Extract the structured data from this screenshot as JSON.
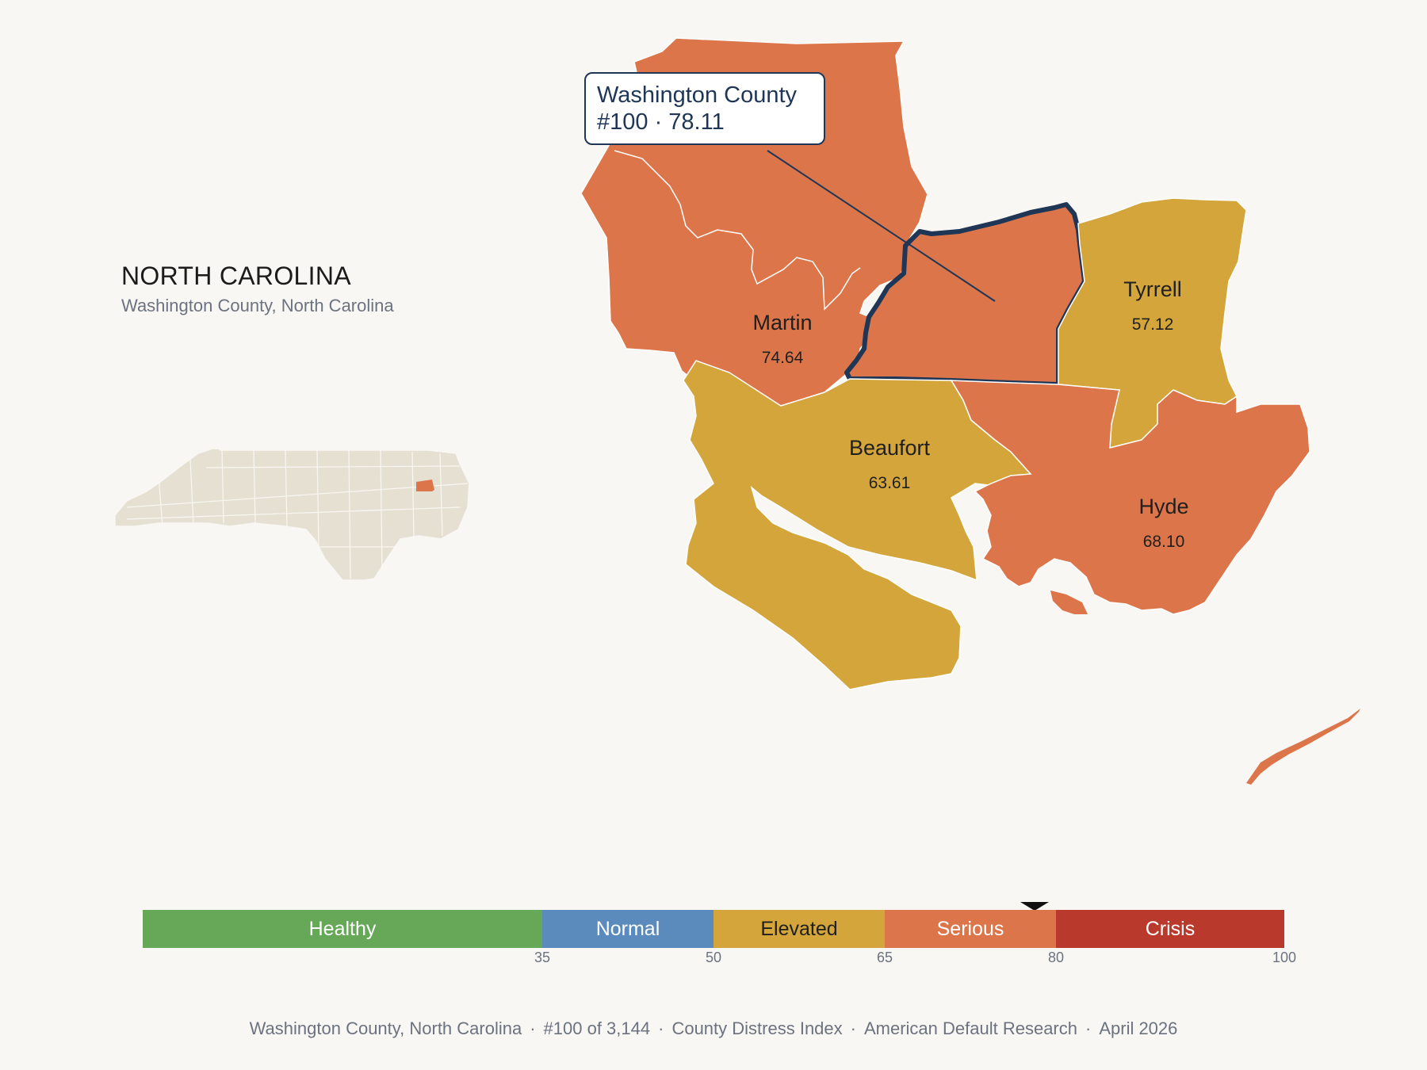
{
  "header": {
    "state_title": "NORTH CAROLINA",
    "subtitle": "Washington County, North Carolina"
  },
  "tooltip": {
    "line1": "Washington County",
    "line2": "#100 · 78.11"
  },
  "counties": [
    {
      "name": "Martin",
      "score": "74.64",
      "category": "Serious"
    },
    {
      "name": "Tyrrell",
      "score": "57.12",
      "category": "Elevated"
    },
    {
      "name": "Beaufort",
      "score": "63.61",
      "category": "Elevated"
    },
    {
      "name": "Hyde",
      "score": "68.10",
      "category": "Serious"
    },
    {
      "name": "Washington",
      "score": "78.11",
      "category": "Serious",
      "highlighted": true
    }
  ],
  "scale": {
    "segments": [
      {
        "label": "Healthy",
        "from": 0,
        "to": 35,
        "color": "#67a858",
        "text_color": "#ffffff"
      },
      {
        "label": "Normal",
        "from": 35,
        "to": 50,
        "color": "#5b8bbc",
        "text_color": "#ffffff"
      },
      {
        "label": "Elevated",
        "from": 50,
        "to": 65,
        "color": "#d3a53a",
        "text_color": "#1f1f1f"
      },
      {
        "label": "Serious",
        "from": 65,
        "to": 80,
        "color": "#dc764a",
        "text_color": "#ffffff"
      },
      {
        "label": "Crisis",
        "from": 80,
        "to": 100,
        "color": "#b93a2c",
        "text_color": "#ffffff"
      }
    ],
    "ticks": [
      "35",
      "50",
      "65",
      "80",
      "100"
    ],
    "marker_value": 78.11
  },
  "colors": {
    "serious": "#dc764a",
    "elevated": "#d3a53a",
    "outline": "#1f3656",
    "inset_land": "#e6e0d3"
  },
  "footer": {
    "county": "Washington County, North Carolina",
    "rank": "#100 of 3,144",
    "index": "County Distress Index",
    "source": "American Default Research",
    "date": "April 2026"
  }
}
